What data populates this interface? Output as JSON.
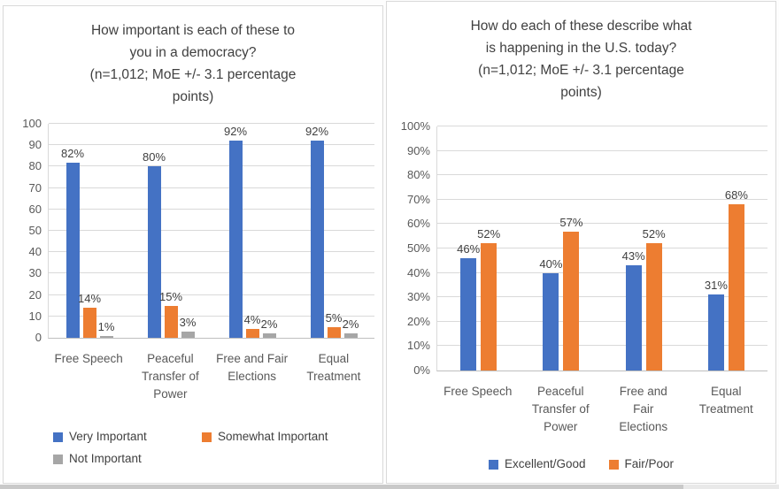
{
  "colors": {
    "blue": "#4472C4",
    "orange": "#ED7D31",
    "gray": "#A6A6A6",
    "gridline": "#D9D9D9",
    "axis_line": "#BFBFBF",
    "title_text": "#404040",
    "axis_text": "#595959"
  },
  "chart_data": [
    {
      "type": "bar",
      "title": "How important is each of these to you in a democracy?",
      "subtitle": "(n=1,012; MoE +/- 3.1 percentage points)",
      "title_lines": [
        "How important is each of these to",
        "you in a democracy?",
        "(n=1,012; MoE +/- 3.1 percentage",
        "points)"
      ],
      "categories": [
        "Free Speech",
        "Peaceful Transfer of Power",
        "Free and Fair Elections",
        "Equal Treatment"
      ],
      "category_label_lines": [
        [
          "Free Speech"
        ],
        [
          "Peaceful",
          "Transfer of",
          "Power"
        ],
        [
          "Free and Fair",
          "Elections"
        ],
        [
          "Equal",
          "Treatment"
        ]
      ],
      "series": [
        {
          "name": "Very Important",
          "color_key": "blue",
          "values": [
            82,
            80,
            92,
            92
          ]
        },
        {
          "name": "Somewhat Important",
          "color_key": "orange",
          "values": [
            14,
            15,
            4,
            5
          ]
        },
        {
          "name": "Not Important",
          "color_key": "gray",
          "values": [
            1,
            3,
            2,
            2
          ]
        }
      ],
      "data_label_suffix": "%",
      "ylim": [
        0,
        100
      ],
      "ytick_step": 10,
      "ytick_suffix": "",
      "grid": true,
      "legend_position": "bottom",
      "legend_rows": [
        [
          "Very Important",
          "Somewhat Important"
        ],
        [
          "Not Important"
        ]
      ]
    },
    {
      "type": "bar",
      "title": "How do each of these describe what is happening in the U.S. today?",
      "subtitle": "(n=1,012; MoE +/- 3.1 percentage points)",
      "title_lines": [
        "How do each of these describe what",
        "is happening in the U.S. today?",
        "(n=1,012; MoE +/- 3.1 percentage",
        "points)"
      ],
      "categories": [
        "Free Speech",
        "Peaceful Transfer of Power",
        "Free and Fair Elections",
        "Equal Treatment"
      ],
      "category_label_lines": [
        [
          "Free Speech"
        ],
        [
          "Peaceful",
          "Transfer of",
          "Power"
        ],
        [
          "Free and",
          "Fair",
          "Elections"
        ],
        [
          "Equal",
          "Treatment"
        ]
      ],
      "series": [
        {
          "name": "Excellent/Good",
          "color_key": "blue",
          "values": [
            46,
            40,
            43,
            31
          ]
        },
        {
          "name": "Fair/Poor",
          "color_key": "orange",
          "values": [
            52,
            57,
            52,
            68
          ]
        }
      ],
      "data_label_suffix": "%",
      "ylim": [
        0,
        100
      ],
      "ytick_step": 10,
      "ytick_suffix": "%",
      "grid": true,
      "legend_position": "bottom",
      "legend_rows": [
        [
          "Excellent/Good",
          "Fair/Poor"
        ]
      ]
    }
  ]
}
